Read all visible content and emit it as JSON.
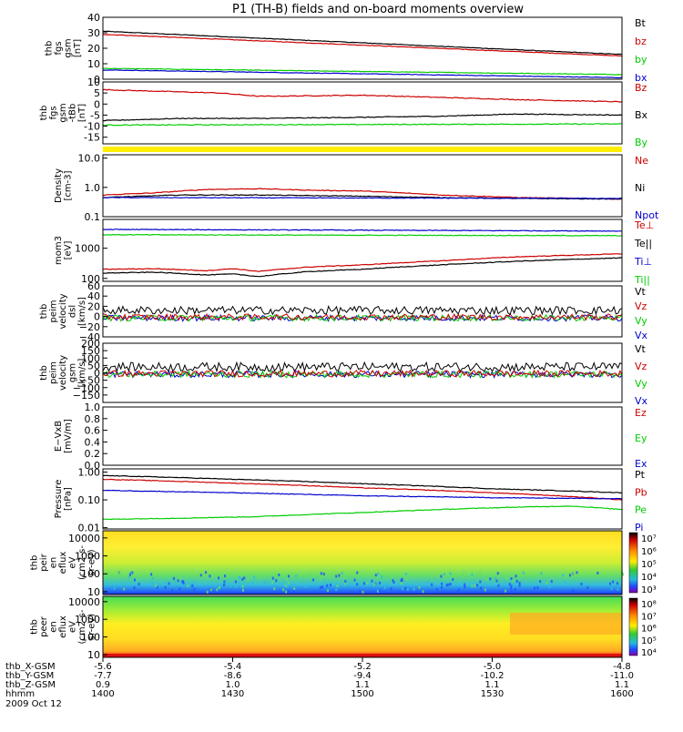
{
  "title": "P1 (TH-B) fields and on-board moments overview",
  "chart_data": [
    {
      "type": "line",
      "ylabel": [
        "thb",
        "fgs",
        "gsm",
        "[nT]"
      ],
      "ylim": [
        0,
        40
      ],
      "yticks": [
        0,
        10,
        20,
        30,
        40
      ],
      "legend": [
        {
          "name": "Bt",
          "color": "#000000"
        },
        {
          "name": "bz",
          "color": "#cc0000"
        },
        {
          "name": "by",
          "color": "#00cc00"
        },
        {
          "name": "bx",
          "color": "#0000cc"
        }
      ],
      "series": [
        {
          "name": "Bt",
          "color": "#000000",
          "x": [
            1400,
            1600
          ],
          "y": [
            31,
            16
          ]
        },
        {
          "name": "bz",
          "color": "#cc0000",
          "x": [
            1400,
            1600
          ],
          "y": [
            29,
            15
          ]
        },
        {
          "name": "by",
          "color": "#00cc00",
          "x": [
            1400,
            1600
          ],
          "y": [
            7,
            3
          ]
        },
        {
          "name": "bx",
          "color": "#0000cc",
          "x": [
            1400,
            1600
          ],
          "y": [
            6,
            1
          ]
        }
      ]
    },
    {
      "type": "line",
      "ylabel": [
        "thb",
        "fgs",
        "gsm",
        "-tBb",
        "[nT]"
      ],
      "ylim": [
        -18,
        10
      ],
      "yticks": [
        -15,
        -10,
        -5,
        0,
        5,
        10
      ],
      "legend": [
        {
          "name": "Bz",
          "color": "#cc0000"
        },
        {
          "name": "Bx",
          "color": "#000000"
        },
        {
          "name": "By",
          "color": "#00cc00"
        }
      ],
      "series": [
        {
          "name": "Bz",
          "color": "#cc0000",
          "x": [
            1400,
            1430,
            1445,
            1460,
            1500,
            1530,
            1560,
            1600
          ],
          "y": [
            6.5,
            5.5,
            5,
            3.5,
            4,
            3,
            2,
            1
          ]
        },
        {
          "name": "Bx",
          "color": "#000000",
          "x": [
            1400,
            1430,
            1460,
            1500,
            1530,
            1560,
            1600
          ],
          "y": [
            -7.5,
            -6.5,
            -6.5,
            -6,
            -5.5,
            -4.5,
            -5
          ]
        },
        {
          "name": "By",
          "color": "#00cc00",
          "x": [
            1400,
            1600
          ],
          "y": [
            -9.5,
            -9
          ]
        }
      ]
    },
    {
      "type": "line",
      "ylabel": [
        "Density",
        "[cm-3]"
      ],
      "yscale": "log",
      "ylim": [
        0.1,
        13
      ],
      "ytick_labels": [
        "0.1",
        "1.0",
        "10.0"
      ],
      "yticks": [
        0.1,
        1,
        10
      ],
      "legend": [
        {
          "name": "Ne",
          "color": "#cc0000"
        },
        {
          "name": "Ni",
          "color": "#000000"
        },
        {
          "name": "Npot",
          "color": "#0000cc"
        }
      ],
      "series": [
        {
          "name": "Ne",
          "color": "#cc0000",
          "x": [
            1400,
            1420,
            1440,
            1460,
            1480,
            1500,
            1530,
            1560,
            1600
          ],
          "y": [
            0.55,
            0.65,
            0.85,
            0.9,
            0.8,
            0.75,
            0.55,
            0.45,
            0.4
          ]
        },
        {
          "name": "Ni",
          "color": "#000000",
          "x": [
            1400,
            1430,
            1460,
            1500,
            1530,
            1560,
            1600
          ],
          "y": [
            0.45,
            0.55,
            0.55,
            0.5,
            0.45,
            0.42,
            0.4
          ]
        },
        {
          "name": "Npot",
          "color": "#0000cc",
          "x": [
            1400,
            1600
          ],
          "y": [
            0.45,
            0.42
          ]
        }
      ]
    },
    {
      "type": "line",
      "ylabel": [
        "mom3",
        "[eV]"
      ],
      "yscale": "log",
      "ylim": [
        80,
        9000
      ],
      "ytick_labels": [
        "100",
        "1000"
      ],
      "yticks": [
        100,
        1000
      ],
      "legend": [
        {
          "name": "Te⊥",
          "color": "#cc0000"
        },
        {
          "name": "Te||",
          "color": "#000000"
        },
        {
          "name": "Ti⊥",
          "color": "#0000cc"
        },
        {
          "name": "Ti||",
          "color": "#00cc00"
        }
      ],
      "series": [
        {
          "name": "Ti⊥",
          "color": "#0000cc",
          "x": [
            1400,
            1600
          ],
          "y": [
            4200,
            3700
          ]
        },
        {
          "name": "Ti||",
          "color": "#00cc00",
          "x": [
            1400,
            1600
          ],
          "y": [
            2800,
            2600
          ]
        },
        {
          "name": "Te⊥",
          "color": "#cc0000",
          "x": [
            1400,
            1420,
            1440,
            1450,
            1460,
            1480,
            1500,
            1530,
            1560,
            1600
          ],
          "y": [
            200,
            210,
            180,
            210,
            170,
            240,
            280,
            380,
            520,
            650
          ]
        },
        {
          "name": "Te||",
          "color": "#000000",
          "x": [
            1400,
            1420,
            1440,
            1450,
            1460,
            1480,
            1500,
            1530,
            1560,
            1600
          ],
          "y": [
            150,
            160,
            130,
            140,
            115,
            170,
            200,
            280,
            370,
            480
          ]
        }
      ]
    },
    {
      "type": "line",
      "ylabel": [
        "thb",
        "peim",
        "velocity",
        "dsl",
        "[km/s]"
      ],
      "ylim": [
        -40,
        60
      ],
      "yticks": [
        -20,
        0,
        20,
        40
      ],
      "ytick_labels": [
        "−20",
        "0",
        "20",
        "40"
      ],
      "extra_tick_labels": [
        "60",
        "−40"
      ],
      "legend": [
        {
          "name": "Vt",
          "color": "#000000"
        },
        {
          "name": "Vz",
          "color": "#cc0000"
        },
        {
          "name": "Vy",
          "color": "#00cc00"
        },
        {
          "name": "Vx",
          "color": "#0000cc"
        }
      ],
      "series": [
        {
          "name": "Vx",
          "color": "#0000cc",
          "x": [
            1400,
            1600
          ],
          "y": [
            -3,
            -3
          ]
        },
        {
          "name": "Vy",
          "color": "#00cc00",
          "x": [
            1400,
            1600
          ],
          "y": [
            -3,
            -3
          ]
        },
        {
          "name": "Vz",
          "color": "#cc0000",
          "x": [
            1400,
            1600
          ],
          "y": [
            -1,
            -1
          ]
        },
        {
          "name": "Vt",
          "color": "#000000",
          "x": [
            1400,
            1600
          ],
          "y": [
            12,
            12
          ]
        }
      ]
    },
    {
      "type": "line",
      "ylabel": [
        "thb",
        "peim",
        "velocity",
        "gsm",
        "[km/s]"
      ],
      "ylim": [
        -200,
        200
      ],
      "yticks": [
        -150,
        -100,
        -50,
        0,
        50,
        100,
        150,
        200
      ],
      "ytick_labels": [
        "−150",
        "−100",
        "−50",
        "0",
        "50",
        "100",
        "150",
        "200"
      ],
      "legend": [
        {
          "name": "Vt",
          "color": "#000000"
        },
        {
          "name": "Vz",
          "color": "#cc0000"
        },
        {
          "name": "Vy",
          "color": "#00cc00"
        },
        {
          "name": "Vx",
          "color": "#0000cc"
        }
      ],
      "series": [
        {
          "name": "Vx",
          "color": "#0000cc",
          "x": [
            1400,
            1600
          ],
          "y": [
            -10,
            -10
          ]
        },
        {
          "name": "Vy",
          "color": "#00cc00",
          "x": [
            1400,
            1600
          ],
          "y": [
            -10,
            -10
          ]
        },
        {
          "name": "Vz",
          "color": "#cc0000",
          "x": [
            1400,
            1600
          ],
          "y": [
            -5,
            -5
          ]
        },
        {
          "name": "Vt",
          "color": "#000000",
          "x": [
            1400,
            1600
          ],
          "y": [
            40,
            40
          ]
        }
      ]
    },
    {
      "type": "line",
      "ylabel": [
        "E−VxB",
        "[mV/m]"
      ],
      "ylim": [
        0,
        1
      ],
      "yticks": [
        0,
        0.2,
        0.4,
        0.6,
        0.8,
        1.0
      ],
      "ytick_labels": [
        "0.0",
        "0.2",
        "0.4",
        "0.6",
        "0.8",
        "1.0"
      ],
      "legend": [
        {
          "name": "Ez",
          "color": "#cc0000"
        },
        {
          "name": "Ey",
          "color": "#00cc00"
        },
        {
          "name": "Ex",
          "color": "#0000cc"
        }
      ],
      "series": []
    },
    {
      "type": "line",
      "ylabel": [
        "Pressure",
        "[nPa]"
      ],
      "yscale": "log",
      "ylim": [
        0.009,
        1.3
      ],
      "yticks": [
        0.01,
        0.1,
        1
      ],
      "ytick_labels": [
        "0.01",
        "0.10",
        "1.00"
      ],
      "legend": [
        {
          "name": "Pt",
          "color": "#000000"
        },
        {
          "name": "Pb",
          "color": "#cc0000"
        },
        {
          "name": "Pe",
          "color": "#00cc00"
        },
        {
          "name": "Pi",
          "color": "#0000cc"
        }
      ],
      "series": [
        {
          "name": "Pt",
          "color": "#000000",
          "x": [
            1400,
            1450,
            1500,
            1550,
            1600
          ],
          "y": [
            0.75,
            0.55,
            0.38,
            0.25,
            0.18
          ]
        },
        {
          "name": "Pb",
          "color": "#cc0000",
          "x": [
            1400,
            1450,
            1500,
            1550,
            1600
          ],
          "y": [
            0.55,
            0.4,
            0.27,
            0.18,
            0.1
          ]
        },
        {
          "name": "Pi",
          "color": "#0000cc",
          "x": [
            1400,
            1450,
            1500,
            1550,
            1600
          ],
          "y": [
            0.22,
            0.18,
            0.14,
            0.12,
            0.11
          ]
        },
        {
          "name": "Pe",
          "color": "#00cc00",
          "x": [
            1400,
            1430,
            1460,
            1500,
            1530,
            1560,
            1580,
            1600
          ],
          "y": [
            0.02,
            0.022,
            0.025,
            0.035,
            0.045,
            0.055,
            0.06,
            0.045
          ]
        }
      ]
    },
    {
      "type": "heatmap",
      "ylabel": [
        "thb",
        "peir",
        "en",
        "eflux",
        "eV",
        "(cm2-s-",
        "sr-eV)"
      ],
      "yscale": "log",
      "ylim": [
        7,
        25000
      ],
      "ytick_labels": [
        "10",
        "100",
        "1000",
        "10000"
      ],
      "yticks": [
        10,
        100,
        1000,
        10000
      ],
      "colorbar_labels": [
        "10⁷",
        "10⁶",
        "10⁵",
        "10⁴",
        "10³"
      ]
    },
    {
      "type": "heatmap",
      "ylabel": [
        "thb",
        "peer",
        "en",
        "eflux",
        "eV",
        "(cm2-s-",
        "sr-eV)"
      ],
      "yscale": "log",
      "ylim": [
        7,
        20000
      ],
      "ytick_labels": [
        "10",
        "100",
        "1000",
        "10000"
      ],
      "yticks": [
        10,
        100,
        1000,
        10000
      ],
      "colorbar_labels": [
        "10⁸",
        "10⁷",
        "10⁶",
        "10⁵",
        "10⁴"
      ]
    }
  ],
  "xaxis": {
    "xlim": [
      1400,
      1600
    ],
    "rows": [
      {
        "label": "thb_X-GSM",
        "values": [
          "-5.6",
          "-5.4",
          "-5.2",
          "-5.0",
          "-4.8"
        ]
      },
      {
        "label": "thb_Y-GSM",
        "values": [
          "-7.7",
          "-8.6",
          "-9.4",
          "-10.2",
          "-11.0"
        ]
      },
      {
        "label": "thb_Z-GSM",
        "values": [
          "0.9",
          "1.0",
          "1.1",
          "1.1",
          "1.1"
        ]
      },
      {
        "label": "hhmm",
        "values": [
          "1400",
          "1430",
          "1500",
          "1530",
          "1600"
        ]
      }
    ],
    "date": "2009 Oct 12"
  }
}
